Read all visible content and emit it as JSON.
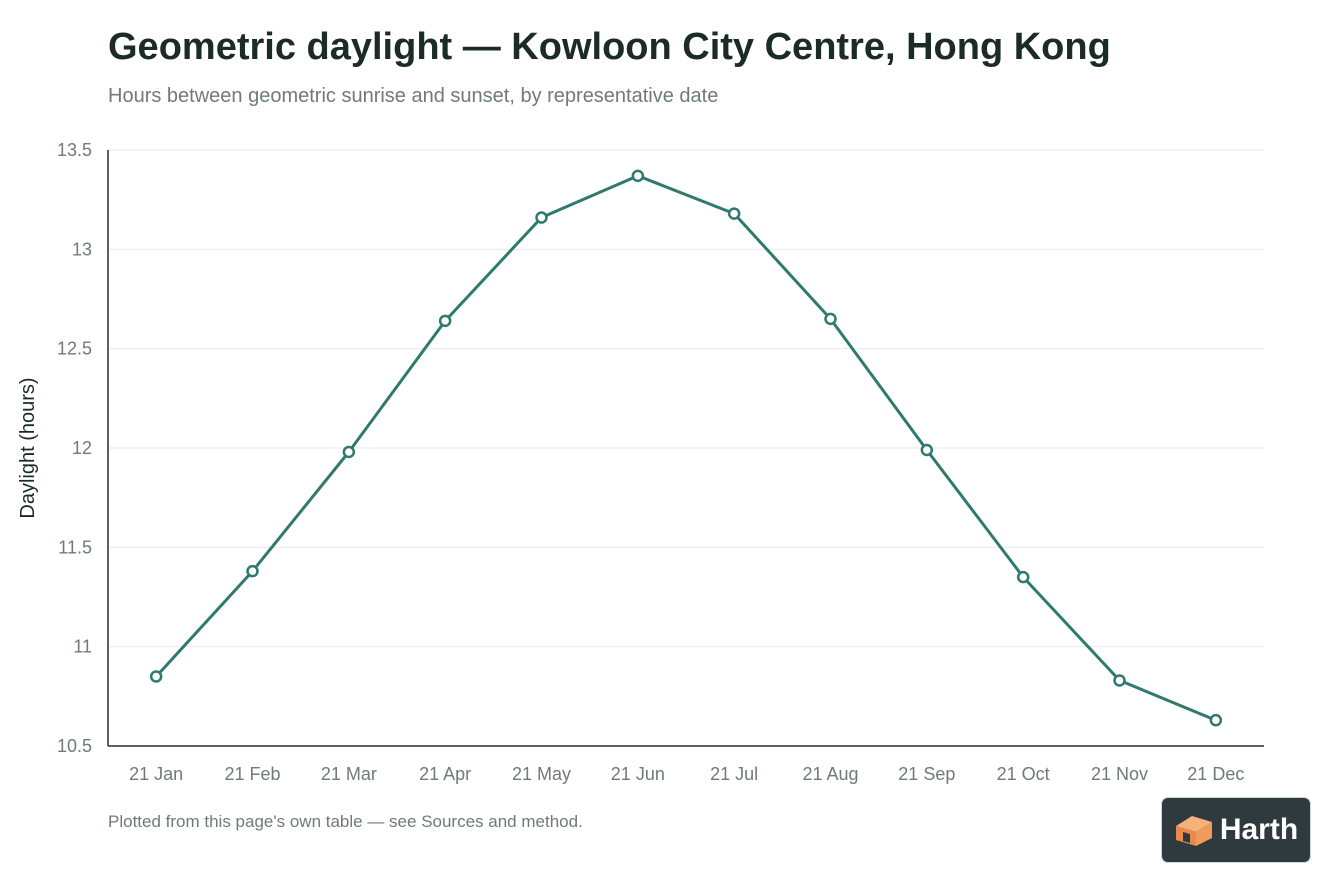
{
  "header": {
    "title": "Geometric daylight — Kowloon City Centre, Hong Kong",
    "subtitle": "Hours between geometric sunrise and sunset, by representative date"
  },
  "footer": {
    "note": "Plotted from this page's own table — see Sources and method."
  },
  "logo": {
    "icon": "house-icon",
    "label": "Harth"
  },
  "colors": {
    "line": "#2f7a6f",
    "grid": "#e6e9e8",
    "axis": "#2a2f2e",
    "tick_text": "#6f7b78",
    "label_text": "#1b2b27"
  },
  "chart_data": {
    "type": "line",
    "title": "Geometric daylight — Kowloon City Centre, Hong Kong",
    "subtitle": "Hours between geometric sunrise and sunset, by representative date",
    "xlabel": "",
    "ylabel": "Daylight (hours)",
    "categories": [
      "21 Jan",
      "21 Feb",
      "21 Mar",
      "21 Apr",
      "21 May",
      "21 Jun",
      "21 Jul",
      "21 Aug",
      "21 Sep",
      "21 Oct",
      "21 Nov",
      "21 Dec"
    ],
    "series": [
      {
        "values": [
          10.85,
          11.38,
          11.98,
          12.64,
          13.16,
          13.37,
          13.18,
          12.65,
          11.99,
          11.35,
          10.83,
          10.63
        ]
      }
    ],
    "ylim": [
      10.5,
      13.5
    ],
    "yticks": [
      10.5,
      11,
      11.5,
      12,
      12.5,
      13,
      13.5
    ],
    "ytick_labels": [
      "10.5",
      "11",
      "11.5",
      "12",
      "12.5",
      "13",
      "13.5"
    ],
    "grid": true,
    "legend": "none"
  }
}
